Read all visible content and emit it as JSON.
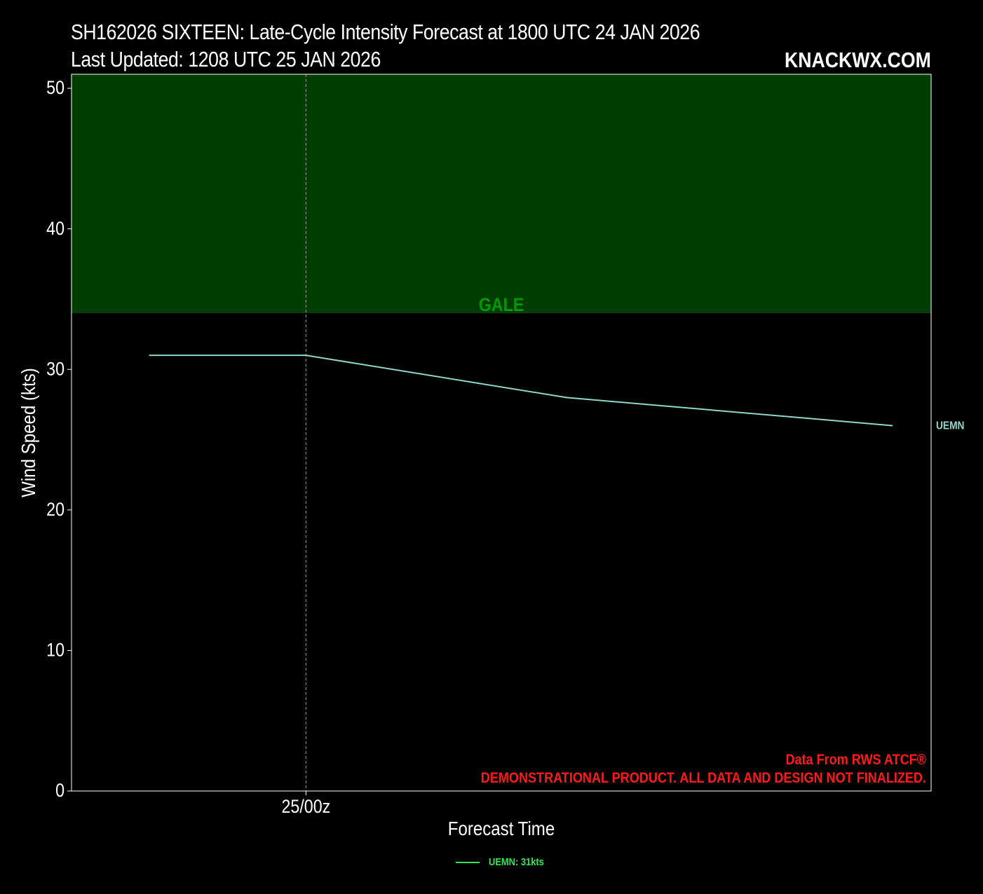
{
  "header": {
    "title_line1": "SH162026 SIXTEEN: Late-Cycle Intensity Forecast at 1800 UTC 24 JAN 2026",
    "title_line2": "Last Updated: 1208 UTC 25 JAN 2026",
    "brand": "KNACKWX.COM"
  },
  "credits": {
    "line1": "Data From RWS ATCF®",
    "line2": "DEMONSTRATIONAL PRODUCT. ALL DATA AND DESIGN NOT FINALIZED."
  },
  "legend": {
    "entries": [
      {
        "label": "UEMN: 31kts",
        "color": "#2ee85a"
      }
    ]
  },
  "chart_data": {
    "type": "line",
    "title": "SH162026 SIXTEEN: Late-Cycle Intensity Forecast at 1800 UTC 24 JAN 2026",
    "xlabel": "Forecast Time",
    "ylabel": "Wind Speed (kts)",
    "ylim": [
      0,
      51
    ],
    "yticks": [
      0,
      10,
      20,
      30,
      40,
      50
    ],
    "x_unit": "forecast hour from 1800 UTC 24 JAN 2026",
    "xlim": [
      -3,
      30
    ],
    "xticks": [
      {
        "x": 6,
        "label": "25/00z"
      }
    ],
    "grid": false,
    "background_color": "#000000",
    "bands": [
      {
        "label": "GALE",
        "y_from": 34,
        "y_to": 51,
        "fill": "#003d00",
        "label_color": "#009900"
      }
    ],
    "series": [
      {
        "name": "UEMN",
        "color": "#8fd6cc",
        "x": [
          0,
          6,
          16,
          28.5
        ],
        "y": [
          31,
          31,
          28,
          26
        ]
      }
    ]
  }
}
